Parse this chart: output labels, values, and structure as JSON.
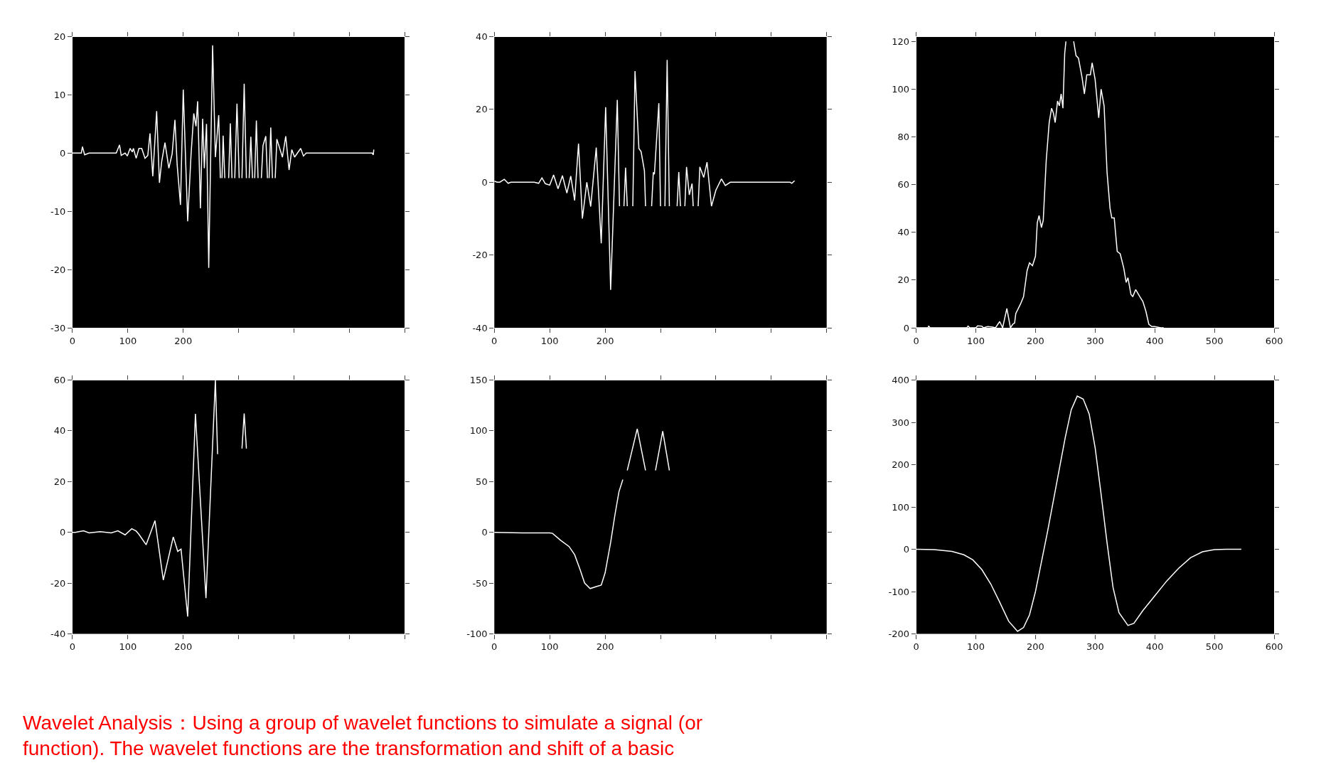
{
  "chart_data": [
    {
      "type": "line",
      "xlim": [
        0,
        600
      ],
      "ylim": [
        -30,
        20
      ],
      "xticks": [
        0,
        100,
        200,
        {
          "value": 300,
          "label": null
        },
        {
          "value": 400,
          "label": null
        },
        {
          "value": 500,
          "label": null
        },
        {
          "value": 600,
          "label": null
        }
      ],
      "yticks": [
        -30,
        -20,
        -10,
        0,
        10,
        20
      ],
      "grid": false,
      "series": [
        {
          "color": "#ffffff",
          "x": [
            0,
            16,
            18,
            22,
            30,
            79,
            85,
            88,
            95,
            99,
            104,
            108,
            110,
            115,
            120,
            125,
            131,
            136,
            140,
            145,
            152,
            157,
            161,
            167,
            174,
            180,
            185,
            189,
            195,
            200,
            208,
            214,
            219,
            223,
            226,
            231,
            235,
            238,
            242,
            246,
            253,
            258,
            264,
            267,
            269,
            270,
            272,
            275,
            278,
            282,
            285,
            288,
            291,
            293,
            297,
            301,
            303,
            306,
            310,
            314,
            316,
            319,
            322,
            325,
            327,
            329,
            332,
            335,
            338,
            341,
            344,
            349,
            352,
            353,
            355,
            358,
            361,
            363,
            366,
            369,
            379,
            385,
            391,
            396,
            401,
            412,
            417,
            422,
            541,
            543,
            544
          ],
          "values": [
            0,
            0,
            1.1,
            -0.3,
            0,
            0,
            1.4,
            -0.4,
            0,
            -0.5,
            0.8,
            0.2,
            0.8,
            -0.9,
            0.8,
            0.8,
            -0.9,
            -0.4,
            3.4,
            -4.0,
            7.2,
            -5.1,
            -1.5,
            1.8,
            -2.6,
            -0.1,
            5.7,
            -2.0,
            -8.9,
            10.9,
            -11.7,
            -0.4,
            6.8,
            4.6,
            8.9,
            -9.5,
            5.9,
            -2.6,
            5.0,
            -19.7,
            18.5,
            -0.7,
            6.5,
            -4.3,
            null,
            -4.3,
            3.0,
            -4.3,
            null,
            -4.3,
            5.1,
            -4.3,
            null,
            -4.3,
            8.5,
            -4.3,
            null,
            -4.3,
            11.9,
            -4.3,
            null,
            -4.3,
            2.8,
            -4.3,
            null,
            -4.3,
            5.6,
            -4.3,
            null,
            -4.3,
            1.3,
            2.9,
            -4.3,
            null,
            -4.3,
            4.4,
            -4.3,
            null,
            -4.3,
            2.4,
            -0.7,
            2.9,
            -2.9,
            0.6,
            -0.7,
            0.8,
            -0.5,
            0,
            0,
            -0.3,
            0.6
          ]
        }
      ]
    },
    {
      "type": "line",
      "xlim": [
        0,
        600
      ],
      "ylim": [
        -40,
        40
      ],
      "xticks": [
        0,
        100,
        200,
        {
          "value": 300,
          "label": null
        },
        {
          "value": 400,
          "label": null
        },
        {
          "value": 500,
          "label": null
        },
        {
          "value": 600,
          "label": null
        }
      ],
      "yticks": [
        -40,
        -20,
        0,
        20,
        40
      ],
      "grid": false,
      "series": [
        {
          "color": "#ffffff",
          "x": [
            0,
            5,
            10,
            18,
            25,
            30,
            72,
            80,
            86,
            92,
            100,
            107,
            115,
            123,
            131,
            138,
            145,
            152,
            159,
            167,
            174,
            184,
            193,
            201,
            210,
            222,
            226,
            230,
            234,
            237,
            240,
            246,
            250,
            254,
            261,
            265,
            271,
            273,
            276,
            284,
            287,
            289,
            297,
            300,
            302,
            308,
            312,
            316,
            322,
            330,
            333,
            336,
            338,
            344,
            347,
            352,
            357,
            359,
            362,
            368,
            371,
            378,
            384,
            392,
            400,
            410,
            417,
            426,
            534,
            537,
            542
          ],
          "values": [
            0.3,
            0,
            0,
            0.8,
            -0.3,
            0,
            0,
            -0.3,
            1.2,
            -0.4,
            -0.8,
            2.0,
            -1.8,
            1.8,
            -3.0,
            1.7,
            -5,
            10.6,
            -10,
            0,
            -6.7,
            9.5,
            -16.8,
            20.6,
            -29.6,
            22.6,
            -6.6,
            null,
            -6.6,
            4.0,
            -6.6,
            null,
            -6.6,
            30.5,
            9.3,
            8.4,
            3.1,
            -6.6,
            null,
            -6.6,
            2.7,
            2.2,
            21.7,
            -6.6,
            null,
            -6.6,
            33.6,
            -6.6,
            null,
            -6.6,
            2.8,
            -6.6,
            null,
            -6.6,
            4.2,
            -3.5,
            -0.4,
            -6.6,
            null,
            -6.6,
            4.2,
            1.3,
            5.5,
            -6.6,
            -2.2,
            0.9,
            -0.9,
            0,
            0,
            -0.3,
            0.4
          ]
        }
      ]
    },
    {
      "type": "line",
      "xlim": [
        0,
        600
      ],
      "ylim": [
        0,
        122
      ],
      "xticks": [
        0,
        100,
        200,
        300,
        400,
        500,
        600
      ],
      "yticks": [
        0,
        20,
        40,
        60,
        80,
        100,
        120
      ],
      "grid": false,
      "series": [
        {
          "color": "#ffffff",
          "x": [
            0,
            20,
            21,
            23,
            85,
            87,
            90,
            100,
            103,
            110,
            113,
            120,
            128,
            133,
            140,
            145,
            152,
            158,
            162,
            165,
            167,
            175,
            180,
            186,
            190,
            195,
            200,
            203,
            206,
            210,
            213,
            218,
            223,
            227,
            230,
            233,
            237,
            240,
            243,
            246,
            249,
            251,
            256,
            264,
            268,
            272,
            278,
            282,
            286,
            292,
            295,
            300,
            306,
            310,
            315,
            320,
            325,
            328,
            332,
            337,
            342,
            348,
            352,
            355,
            360,
            363,
            368,
            375,
            380,
            385,
            390,
            395,
            400,
            410,
            415
          ],
          "values": [
            0,
            0,
            0.8,
            0,
            0,
            0.7,
            0,
            0,
            0.8,
            0.7,
            0,
            0.5,
            0.3,
            0,
            2.6,
            0,
            8.1,
            0,
            1.5,
            2,
            6,
            10,
            13,
            24,
            27.2,
            26,
            30,
            44,
            47,
            42,
            45,
            70,
            86,
            92,
            90,
            86,
            95,
            93,
            98,
            92,
            115,
            120,
            null,
            120,
            114,
            113,
            105,
            98,
            106,
            106,
            111,
            104,
            88,
            100,
            93,
            65,
            50,
            46,
            46,
            32,
            31,
            25,
            19,
            21,
            14,
            13,
            16,
            13,
            11,
            7,
            1.5,
            0.5,
            0.5,
            0,
            0
          ]
        }
      ]
    },
    {
      "type": "line",
      "xlim": [
        0,
        600
      ],
      "ylim": [
        -40,
        60
      ],
      "xticks": [
        0,
        100,
        200,
        {
          "value": 300,
          "label": null
        },
        {
          "value": 400,
          "label": null
        },
        {
          "value": 500,
          "label": null
        },
        {
          "value": 600,
          "label": null
        }
      ],
      "yticks": [
        -40,
        -20,
        0,
        20,
        40,
        60
      ],
      "grid": false,
      "series": [
        {
          "color": "#ffffff",
          "x": [
            0,
            5,
            20,
            30,
            50,
            70,
            82,
            95,
            107,
            115,
            120,
            133,
            149,
            164,
            182,
            190,
            196,
            208,
            222,
            241,
            258,
            262,
            285,
            306,
            310,
            314
          ],
          "values": [
            0,
            0,
            0.6,
            -0.2,
            0.3,
            -0.2,
            0.6,
            -1.0,
            1.4,
            0.5,
            -0.8,
            -4.9,
            4.6,
            -18.8,
            -1.8,
            -7.5,
            -6.6,
            -33.2,
            46.7,
            -25.9,
            60,
            30.8,
            null,
            33,
            46.8,
            33
          ]
        }
      ]
    },
    {
      "type": "line",
      "xlim": [
        0,
        600
      ],
      "ylim": [
        -100,
        150
      ],
      "xticks": [
        0,
        100,
        200,
        {
          "value": 300,
          "label": null
        },
        {
          "value": 400,
          "label": null
        },
        {
          "value": 500,
          "label": null
        },
        {
          "value": 600,
          "label": null
        }
      ],
      "yticks": [
        -100,
        -50,
        0,
        50,
        100,
        150
      ],
      "grid": false,
      "series": [
        {
          "color": "#ffffff",
          "x": [
            0,
            50,
            100,
            105,
            120,
            135,
            145,
            155,
            163,
            173,
            185,
            193,
            200,
            210,
            218,
            225,
            232,
            236,
            240,
            258,
            273,
            282,
            291,
            304,
            316
          ],
          "values": [
            0,
            -0.5,
            -0.5,
            -1,
            -8,
            -14,
            -22,
            -37,
            -50,
            -55.4,
            -53.3,
            -52,
            -40,
            -10,
            18,
            40,
            52,
            null,
            61,
            101.9,
            61,
            null,
            61,
            99.7,
            61
          ]
        }
      ]
    },
    {
      "type": "line",
      "xlim": [
        0,
        600
      ],
      "ylim": [
        -200,
        400
      ],
      "xticks": [
        0,
        100,
        200,
        300,
        400,
        500,
        600
      ],
      "yticks": [
        -200,
        -100,
        0,
        100,
        200,
        300,
        400
      ],
      "grid": false,
      "series": [
        {
          "color": "#ffffff",
          "x": [
            0,
            30,
            60,
            80,
            95,
            110,
            125,
            140,
            155,
            170,
            180,
            190,
            200,
            210,
            220,
            230,
            240,
            250,
            260,
            270,
            280,
            290,
            300,
            310,
            320,
            330,
            340,
            355,
            365,
            380,
            400,
            420,
            440,
            460,
            480,
            500,
            520,
            545
          ],
          "values": [
            0,
            -1,
            -5,
            -13,
            -25,
            -48,
            -82,
            -125,
            -170,
            -194,
            -185,
            -155,
            -100,
            -30,
            40,
            115,
            190,
            265,
            330,
            362,
            355,
            320,
            240,
            130,
            15,
            -90,
            -150,
            -180,
            -175,
            -145,
            -110,
            -75,
            -45,
            -20,
            -6,
            -1,
            0,
            0
          ]
        }
      ]
    },
    {
      "type": "other",
      "annotations": [
        "Wavelet Analysis：Using a group of wavelet functions to simulate a signal (or function). The wavelet functions are the transformation and shift of a basic"
      ]
    }
  ]
}
